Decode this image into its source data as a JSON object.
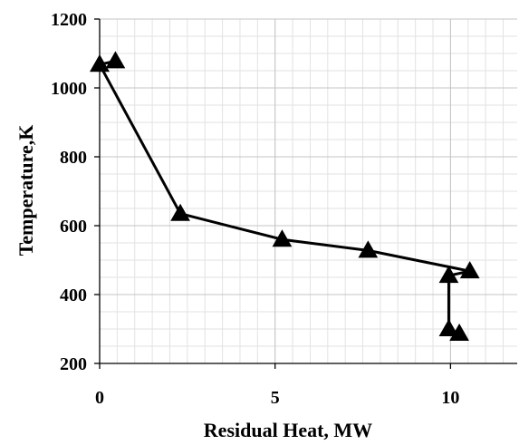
{
  "chart_data": {
    "type": "line",
    "title": "",
    "xlabel": "Residual Heat, MW",
    "ylabel": "Temperature,K",
    "xlim": [
      0,
      11.9
    ],
    "ylim": [
      200,
      1200
    ],
    "x_ticks": [
      0,
      5,
      10
    ],
    "x_tick_labels": [
      "0",
      "5",
      "10"
    ],
    "x_minor_step": 0.5,
    "y_ticks": [
      200,
      400,
      600,
      800,
      1000,
      1200
    ],
    "y_tick_labels": [
      "200",
      "400",
      "600",
      "800",
      "1000",
      "1200"
    ],
    "y_minor_step": 50,
    "grid": true,
    "legend": "none",
    "series": [
      {
        "marker": "triangle",
        "color": "#000000",
        "points": [
          {
            "x": 0.0,
            "y": 1068
          },
          {
            "x": 0.45,
            "y": 1078
          },
          {
            "x": 0.0,
            "y": 1068
          },
          {
            "x": 2.3,
            "y": 635
          },
          {
            "x": 5.2,
            "y": 560
          },
          {
            "x": 7.65,
            "y": 528
          },
          {
            "x": 10.55,
            "y": 468
          },
          {
            "x": 9.95,
            "y": 455
          },
          {
            "x": 9.95,
            "y": 300
          },
          {
            "x": 10.25,
            "y": 287
          }
        ]
      }
    ]
  }
}
